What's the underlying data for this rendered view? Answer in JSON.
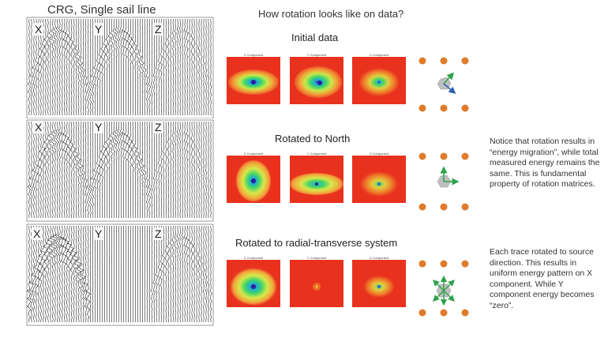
{
  "left_title": "CRG, Single sail line",
  "center_title": "How rotation looks like on data?",
  "component_labels": [
    "X",
    "Y",
    "Z"
  ],
  "sections": [
    {
      "title": "Initial data",
      "captions": [
        "X Component",
        "Y Component",
        "Z Component"
      ]
    },
    {
      "title": "Rotated to North",
      "captions": [
        "X Component",
        "Y Component",
        "Z Component"
      ]
    },
    {
      "title": "Rotated to radial-transverse system",
      "captions": [
        "X Component",
        "Y Component",
        "Z Component"
      ]
    }
  ],
  "notes": {
    "north": "Notice that rotation results in “energy migration”, while total measured energy remains the same. This is fundamental property of rotation matrices.",
    "radial": "Each trace rotated to source direction. This results in uniform energy pattern on X component. While Y component energy becomes “zero”."
  },
  "colors": {
    "heatmap_bg": "#e8321e",
    "source_dot": "#e07b2a",
    "receiver": "#bfbfbf",
    "arrow_green": "#2ca24a",
    "arrow_blue": "#2b5fb4"
  }
}
